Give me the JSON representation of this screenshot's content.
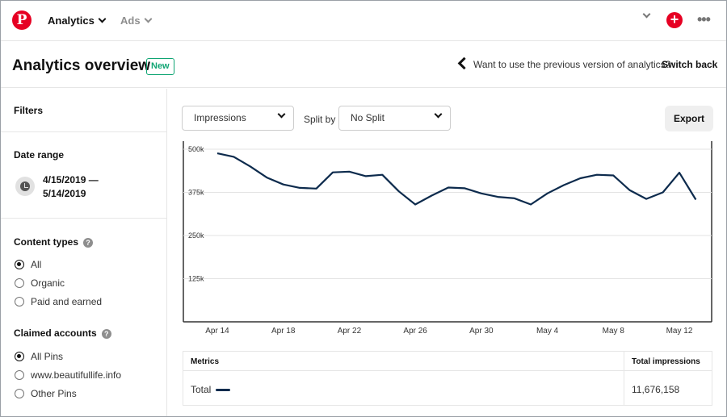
{
  "nav": {
    "logo": "P",
    "analytics_label": "Analytics",
    "ads_label": "Ads",
    "plus_label": "+",
    "more_label": "•••"
  },
  "header": {
    "title": "Analytics overview",
    "badge": "New",
    "prev_version_text": "Want to use the previous version of analytics?",
    "switch_back_label": "Switch back"
  },
  "sidebar": {
    "filters_heading": "Filters",
    "date_range_heading": "Date range",
    "date_start": "4/15/2019 —",
    "date_end": "5/14/2019",
    "content_types_heading": "Content types",
    "content_types": [
      {
        "label": "All",
        "checked": true
      },
      {
        "label": "Organic",
        "checked": false
      },
      {
        "label": "Paid and earned",
        "checked": false
      }
    ],
    "claimed_accounts_heading": "Claimed accounts",
    "claimed_accounts": [
      {
        "label": "All Pins",
        "checked": true
      },
      {
        "label": "www.beautifullife.info",
        "checked": false
      },
      {
        "label": "Other Pins",
        "checked": false
      }
    ],
    "help_glyph": "?"
  },
  "controls": {
    "metric_select": "Impressions",
    "split_by_label": "Split by",
    "split_select": "No Split",
    "export_label": "Export"
  },
  "chart_data": {
    "type": "line",
    "title": "",
    "xlabel": "",
    "ylabel": "",
    "ylim": [
      0,
      500000
    ],
    "yticks": [
      125000,
      250000,
      375000,
      500000
    ],
    "ytick_labels": [
      "125k",
      "250k",
      "375k",
      "500k"
    ],
    "grid": true,
    "x_tick_labels": [
      "Apr 14",
      "Apr 18",
      "Apr 22",
      "Apr 26",
      "Apr 30",
      "May 4",
      "May 8",
      "May 12"
    ],
    "x_tick_days": [
      0,
      4,
      8,
      12,
      16,
      20,
      24,
      28
    ],
    "x_start_label": "Apr 14",
    "series": [
      {
        "name": "Total",
        "color": "#0d2b4d",
        "x": [
          0,
          1,
          2,
          3,
          4,
          5,
          6,
          7,
          8,
          9,
          10,
          11,
          12,
          13,
          14,
          15,
          16,
          17,
          18,
          19,
          20,
          21,
          22,
          23,
          24,
          25,
          26,
          27,
          28,
          29
        ],
        "values": [
          488000,
          478000,
          450000,
          418000,
          398000,
          388000,
          386000,
          433000,
          435000,
          422000,
          426000,
          378000,
          340000,
          366000,
          389000,
          387000,
          372000,
          362000,
          358000,
          340000,
          372000,
          396000,
          416000,
          426000,
          424000,
          381000,
          356000,
          375000,
          432000,
          354000
        ]
      }
    ]
  },
  "metrics_table": {
    "col_metric": "Metrics",
    "col_value": "Total impressions",
    "row_label": "Total",
    "row_value": "11,676,158"
  }
}
